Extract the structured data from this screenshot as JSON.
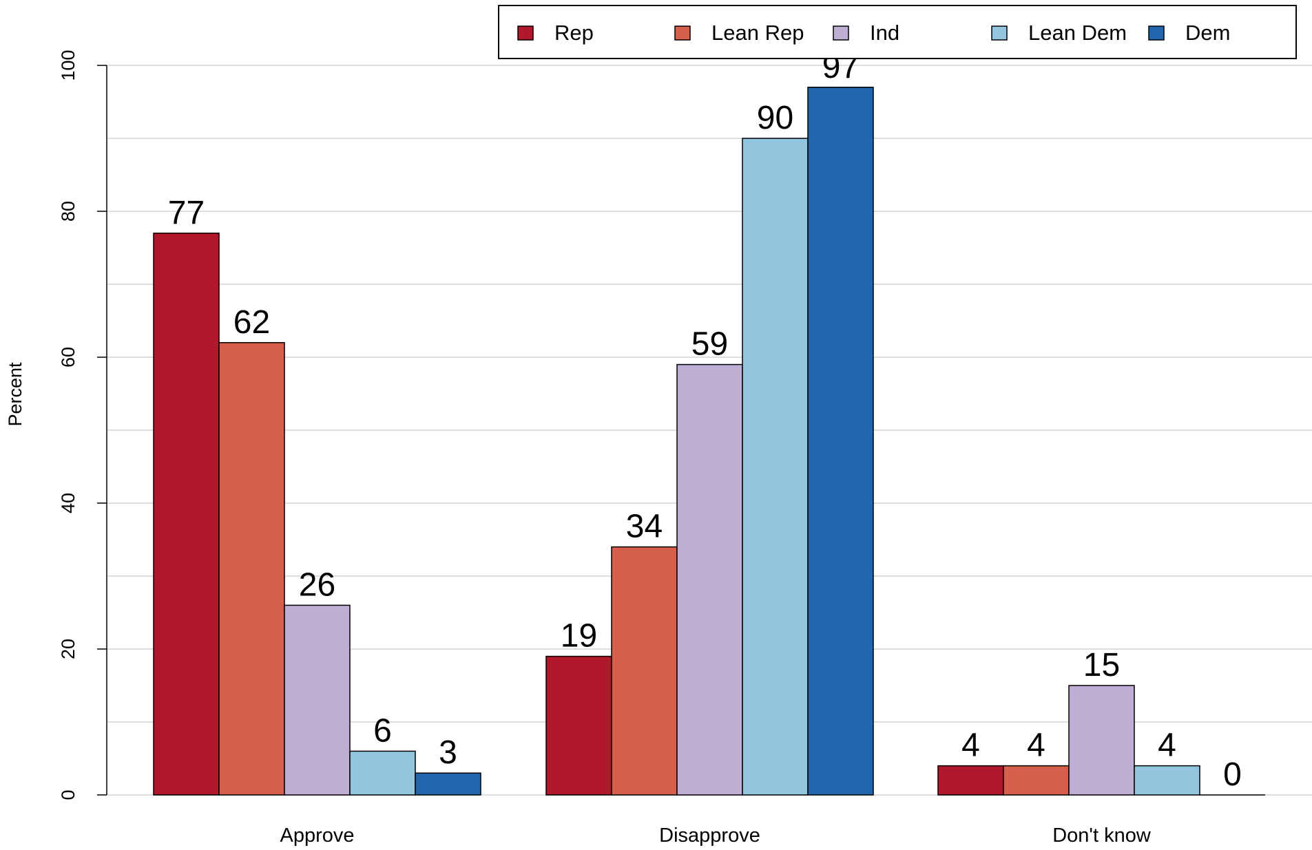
{
  "chart_data": {
    "type": "bar",
    "title": "",
    "xlabel": "",
    "ylabel": "Percent",
    "categories": [
      "Approve",
      "Disapprove",
      "Don't know"
    ],
    "ylim": [
      0,
      100
    ],
    "yticks": [
      0,
      20,
      40,
      60,
      80,
      100
    ],
    "grid": true,
    "legend_position": "top-right",
    "series": [
      {
        "name": "Rep",
        "color": "#B2182B",
        "values": [
          77,
          19,
          4
        ]
      },
      {
        "name": "Lean Rep",
        "color": "#D6604D",
        "values": [
          62,
          34,
          4
        ]
      },
      {
        "name": "Ind",
        "color": "#BEAED4",
        "values": [
          26,
          59,
          15
        ]
      },
      {
        "name": "Lean Dem",
        "color": "#92C5DE",
        "values": [
          6,
          90,
          4
        ]
      },
      {
        "name": "Dem",
        "color": "#2166AC",
        "values": [
          3,
          97,
          0
        ]
      }
    ]
  }
}
